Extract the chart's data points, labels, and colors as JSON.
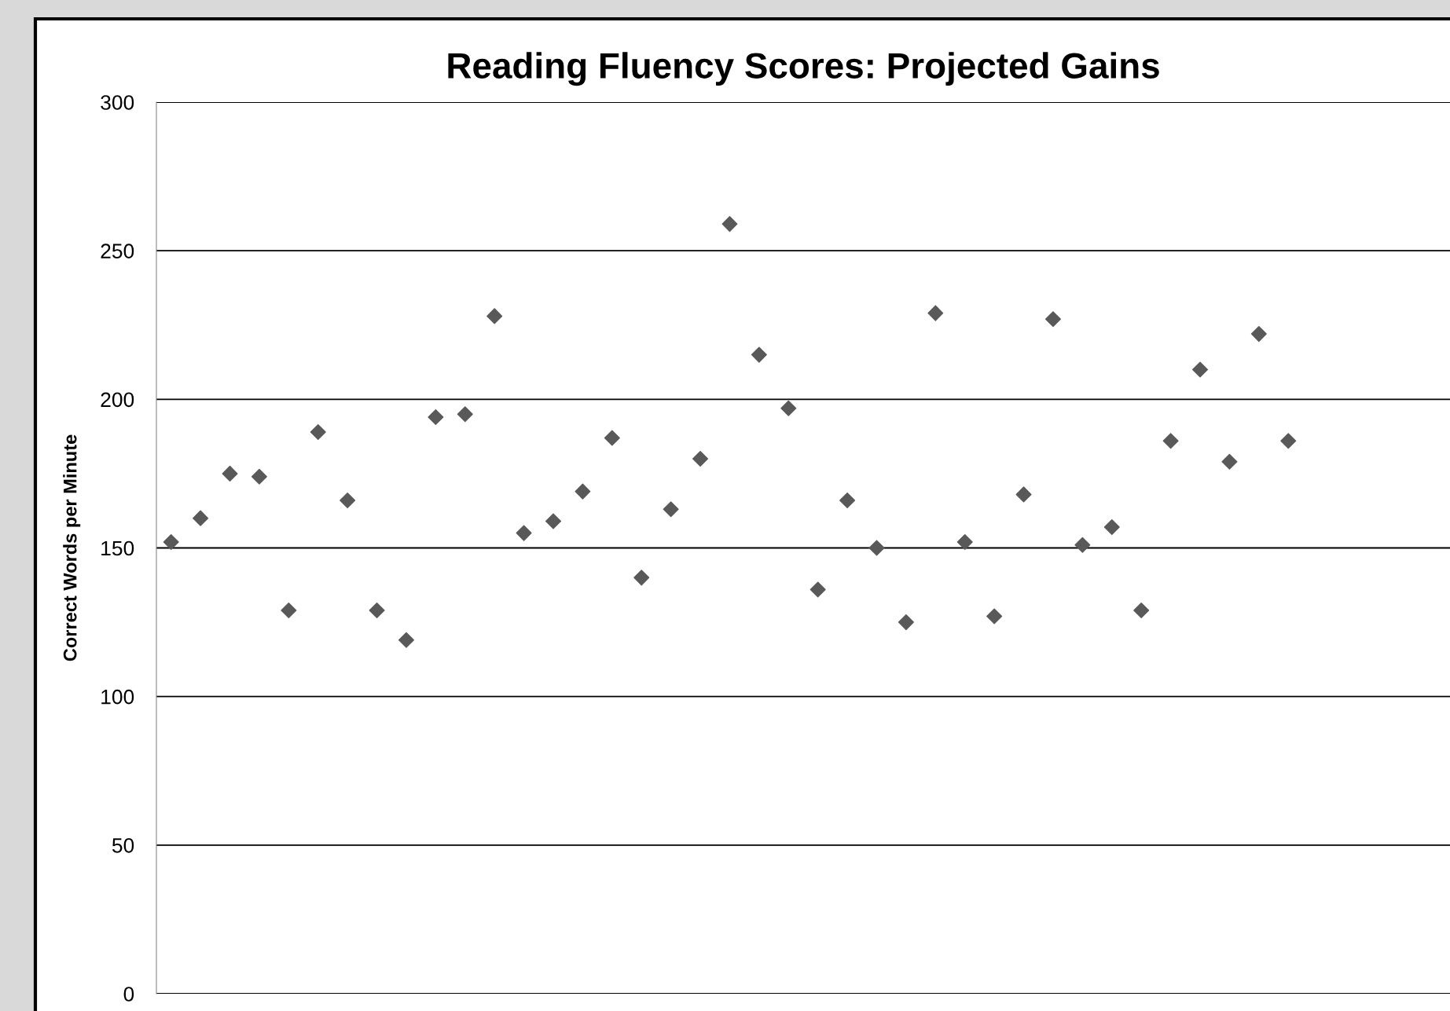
{
  "chart_data": {
    "type": "scatter",
    "title": "Reading Fluency Scores: Projected Gains",
    "ylabel": "Correct Words per Minute",
    "categories": [
      null,
      null,
      null,
      null,
      null,
      null,
      null,
      null,
      null,
      null,
      null,
      null,
      null,
      null,
      null,
      null,
      null,
      null,
      null,
      null,
      null,
      null,
      null,
      null,
      null,
      null,
      null,
      null,
      null,
      null,
      null,
      null,
      null,
      null,
      null,
      null,
      null,
      null,
      null,
      null,
      null,
      null,
      null,
      null
    ],
    "series": [
      {
        "color": "#595959",
        "values": [
          152,
          160,
          175,
          174,
          129,
          189,
          166,
          129,
          119,
          194,
          195,
          228,
          155,
          159,
          169,
          187,
          140,
          163,
          180,
          259,
          215,
          197,
          136,
          166,
          150,
          125,
          229,
          152,
          127,
          168,
          227,
          151,
          157,
          129,
          186,
          210,
          179,
          222,
          186,
          null,
          null,
          null,
          null,
          null
        ]
      }
    ],
    "ylim": [
      0,
      300
    ],
    "yticks": [
      0,
      50,
      100,
      150,
      200,
      250,
      300
    ],
    "grid": "y",
    "marker": "diamond",
    "legend": false,
    "tick_labels": "y"
  }
}
